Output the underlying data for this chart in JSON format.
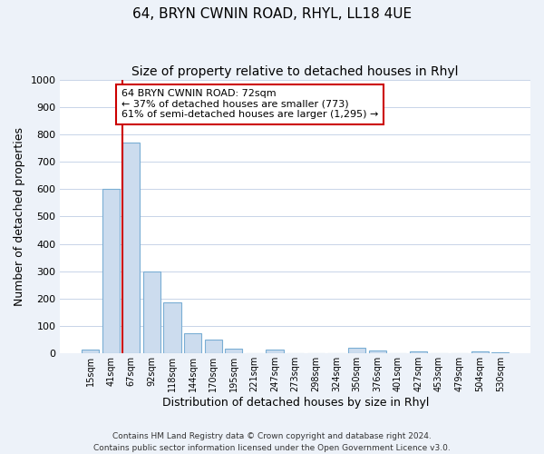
{
  "title": "64, BRYN CWNIN ROAD, RHYL, LL18 4UE",
  "subtitle": "Size of property relative to detached houses in Rhyl",
  "xlabel": "Distribution of detached houses by size in Rhyl",
  "ylabel": "Number of detached properties",
  "bar_labels": [
    "15sqm",
    "41sqm",
    "67sqm",
    "92sqm",
    "118sqm",
    "144sqm",
    "170sqm",
    "195sqm",
    "221sqm",
    "247sqm",
    "273sqm",
    "298sqm",
    "324sqm",
    "350sqm",
    "376sqm",
    "401sqm",
    "427sqm",
    "453sqm",
    "479sqm",
    "504sqm",
    "530sqm"
  ],
  "bar_values": [
    15,
    600,
    770,
    300,
    185,
    75,
    50,
    17,
    0,
    13,
    0,
    0,
    0,
    20,
    10,
    0,
    8,
    0,
    0,
    8,
    5
  ],
  "bar_color": "#ccdcee",
  "bar_edge_color": "#7aaed4",
  "red_line_index": 2,
  "red_line_color": "#cc0000",
  "annotation_text": "64 BRYN CWNIN ROAD: 72sqm\n← 37% of detached houses are smaller (773)\n61% of semi-detached houses are larger (1,295) →",
  "annotation_box_color": "#ffffff",
  "annotation_box_edge": "#cc0000",
  "ylim": [
    0,
    1000
  ],
  "yticks": [
    0,
    100,
    200,
    300,
    400,
    500,
    600,
    700,
    800,
    900,
    1000
  ],
  "footer1": "Contains HM Land Registry data © Crown copyright and database right 2024.",
  "footer2": "Contains public sector information licensed under the Open Government Licence v3.0.",
  "bg_color": "#edf2f9",
  "plot_bg_color": "#ffffff",
  "grid_color": "#c8d4e8"
}
